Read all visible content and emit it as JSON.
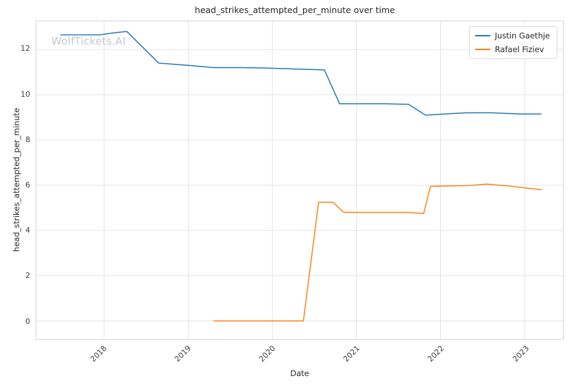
{
  "watermark": "WolfTickets.AI",
  "chart_data": {
    "type": "line",
    "title": "head_strikes_attempted_per_minute over time",
    "xlabel": "Date",
    "ylabel": "head_strikes_attempted_per_minute",
    "xlim": [
      2017.2,
      2023.45
    ],
    "ylim": [
      -0.8,
      13.25
    ],
    "xticks": [
      2018,
      2019,
      2020,
      2021,
      2022,
      2023
    ],
    "yticks": [
      0,
      2,
      4,
      6,
      8,
      10,
      12
    ],
    "grid": true,
    "legend_position": "upper right",
    "series": [
      {
        "name": "Justin Gaethje",
        "color": "#1f77b4",
        "points": [
          [
            2017.48,
            12.65
          ],
          [
            2017.72,
            12.65
          ],
          [
            2017.95,
            12.65
          ],
          [
            2018.08,
            12.72
          ],
          [
            2018.27,
            12.8
          ],
          [
            2018.65,
            11.4
          ],
          [
            2019.0,
            11.3
          ],
          [
            2019.3,
            11.2
          ],
          [
            2019.62,
            11.2
          ],
          [
            2019.95,
            11.18
          ],
          [
            2020.2,
            11.15
          ],
          [
            2020.45,
            11.12
          ],
          [
            2020.62,
            11.1
          ],
          [
            2020.8,
            9.6
          ],
          [
            2021.05,
            9.6
          ],
          [
            2021.35,
            9.6
          ],
          [
            2021.62,
            9.58
          ],
          [
            2021.82,
            9.1
          ],
          [
            2022.05,
            9.15
          ],
          [
            2022.3,
            9.2
          ],
          [
            2022.6,
            9.2
          ],
          [
            2022.95,
            9.15
          ],
          [
            2023.2,
            9.15
          ]
        ]
      },
      {
        "name": "Rafael Fiziev",
        "color": "#ff7f0e",
        "points": [
          [
            2019.3,
            0
          ],
          [
            2019.6,
            0
          ],
          [
            2019.9,
            0
          ],
          [
            2020.15,
            0
          ],
          [
            2020.37,
            0
          ],
          [
            2020.55,
            5.25
          ],
          [
            2020.72,
            5.25
          ],
          [
            2020.85,
            4.8
          ],
          [
            2021.1,
            4.8
          ],
          [
            2021.4,
            4.8
          ],
          [
            2021.62,
            4.8
          ],
          [
            2021.8,
            4.75
          ],
          [
            2021.88,
            5.95
          ],
          [
            2022.1,
            5.97
          ],
          [
            2022.32,
            5.98
          ],
          [
            2022.55,
            6.05
          ],
          [
            2022.85,
            5.95
          ],
          [
            2023.2,
            5.8
          ]
        ]
      }
    ]
  }
}
